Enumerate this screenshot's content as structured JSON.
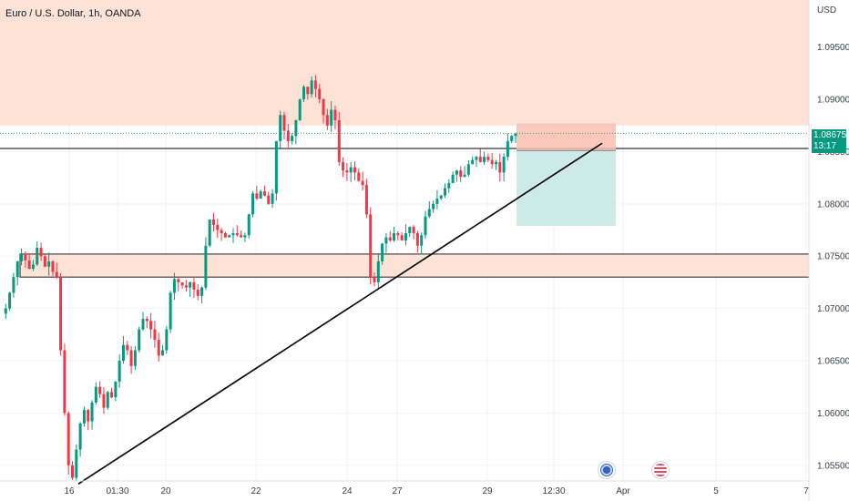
{
  "symbol_title": "Euro / U.S. Dollar, 1h, OANDA",
  "currency": "USD",
  "last_price": {
    "price": "1.08675",
    "countdown": "13:17",
    "color": "#089981"
  },
  "colors": {
    "up": "#089981",
    "down": "#f23645",
    "supply_zone": "#fde3d6",
    "stop_zone": "#f9c0b0",
    "target_zone": "#cdeae6",
    "trendline": "#000000"
  },
  "events": [
    {
      "icon": "eu-flag-icon",
      "country": "EU"
    },
    {
      "icon": "us-flag-icon",
      "country": "US"
    }
  ],
  "chart_data": {
    "type": "candlestick",
    "title": "Euro / U.S. Dollar, 1h, OANDA",
    "ylabel": "USD",
    "ylim": [
      1.0535,
      1.0995
    ],
    "y_ticks": [
      "1.09500",
      "1.09000",
      "1.08500",
      "1.08000",
      "1.07500",
      "1.07000",
      "1.06500",
      "1.06000",
      "1.05500"
    ],
    "x_ticks": [
      "16",
      "01:30",
      "20",
      "22",
      "24",
      "27",
      "29",
      "12:30",
      "Apr",
      "5",
      "7"
    ],
    "zones": [
      {
        "name": "supply",
        "from": 1.0875,
        "to": 1.0995
      },
      {
        "name": "demand",
        "from": 1.073,
        "to": 1.0752
      }
    ],
    "key_level": 1.0853,
    "position": {
      "type": "short",
      "entry": 1.0851,
      "stop": 1.0877,
      "target": 1.0779
    },
    "trendline": {
      "from_price": 1.0533,
      "to_price": 1.0858
    },
    "price_path": [
      1.0695,
      1.07,
      1.0715,
      1.073,
      1.0745,
      1.0752,
      1.0746,
      1.0738,
      1.0742,
      1.0758,
      1.075,
      1.074,
      1.0745,
      1.0735,
      1.073,
      1.066,
      1.06,
      1.055,
      1.0538,
      1.0565,
      1.059,
      1.0603,
      1.0592,
      1.061,
      1.0625,
      1.0618,
      1.0605,
      1.062,
      1.0615,
      1.063,
      1.065,
      1.0665,
      1.066,
      1.0645,
      1.066,
      1.068,
      1.069,
      1.0688,
      1.068,
      1.067,
      1.0655,
      1.066,
      1.068,
      1.0715,
      1.0728,
      1.0725,
      1.0722,
      1.072,
      1.0725,
      1.0718,
      1.0712,
      1.072,
      1.076,
      1.0785,
      1.078,
      1.0775,
      1.0772,
      1.0768,
      1.077,
      1.0772,
      1.077,
      1.0768,
      1.077,
      1.079,
      1.081,
      1.0805,
      1.0812,
      1.0808,
      1.08,
      1.081,
      1.086,
      1.0885,
      1.087,
      1.086,
      1.0865,
      1.088,
      1.09,
      1.0912,
      1.0905,
      1.0918,
      1.091,
      1.09,
      1.0885,
      1.0875,
      1.089,
      1.088,
      1.084,
      1.0832,
      1.083,
      1.0835,
      1.083,
      1.0822,
      1.0818,
      1.079,
      1.073,
      1.0725,
      1.0745,
      1.0762,
      1.0768,
      1.0765,
      1.0772,
      1.077,
      1.0765,
      1.0772,
      1.0778,
      1.0772,
      1.076,
      1.077,
      1.0788,
      1.0795,
      1.08,
      1.0805,
      1.0808,
      1.0815,
      1.082,
      1.0828,
      1.0832,
      1.0826,
      1.0828,
      1.0838,
      1.0842,
      1.0845,
      1.084,
      1.0845,
      1.0842,
      1.0838,
      1.084,
      1.083,
      1.0845,
      1.086,
      1.0865,
      1.0867
    ]
  }
}
